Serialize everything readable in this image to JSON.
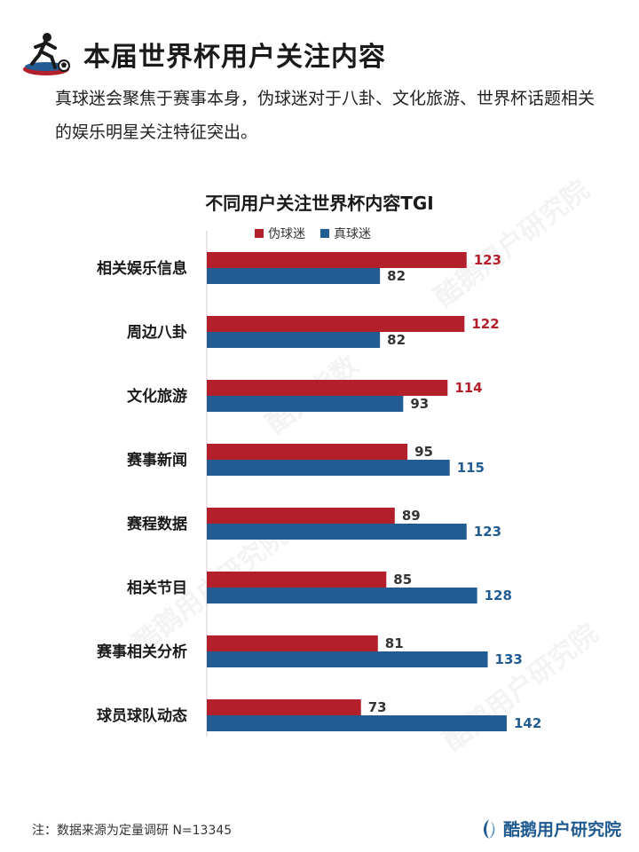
{
  "header": {
    "title": "本届世界杯用户关注内容",
    "intro": "真球迷会聚焦于赛事本身，伪球迷对于八卦、文化旅游、世界杯话题相关的娱乐明星关注特征突出。"
  },
  "footer": {
    "note": "注：数据来源为定量调研  N=13345",
    "brand": "酷鹅用户研究院"
  },
  "watermarks": [
    "酷鹅指数",
    "酷鹅用户研究院"
  ],
  "colors": {
    "fake_fans": "#b3202c",
    "real_fans": "#225c93",
    "axis": "#cccccc",
    "brand": "#1f5b90"
  },
  "chart_data": {
    "type": "bar",
    "orientation": "horizontal",
    "title": "不同用户关注世界杯内容TGI",
    "legend_position": "top",
    "categories": [
      "相关娱乐信息",
      "周边八卦",
      "文化旅游",
      "赛事新闻",
      "赛程数据",
      "相关节目",
      "赛事相关分析",
      "球员球队动态"
    ],
    "series": [
      {
        "name": "伪球迷",
        "color": "#b3202c",
        "values": [
          123,
          122,
          114,
          95,
          89,
          85,
          81,
          73
        ]
      },
      {
        "name": "真球迷",
        "color": "#225c93",
        "values": [
          82,
          82,
          93,
          115,
          123,
          128,
          133,
          142
        ]
      }
    ],
    "xlim": [
      0,
      150
    ],
    "grid": false
  }
}
